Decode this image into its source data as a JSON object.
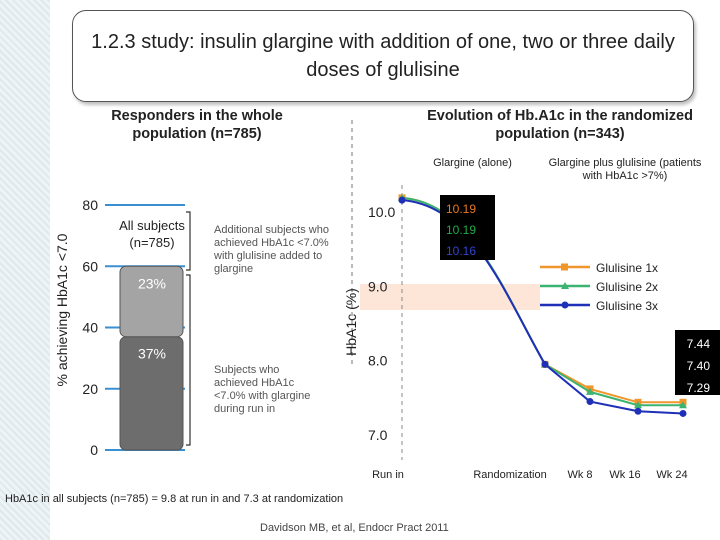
{
  "title": "1.2.3 study: insulin glargine with addition of one, two or three daily doses of glulisine",
  "left_heading": "Responders in the whole population (n=785)",
  "right_heading": "Evolution of Hb.A1c in the randomized population (n=343)",
  "left_chart": {
    "ylabel": "% achieving HbA1c <7.0",
    "yticks": [
      "0",
      "20",
      "40",
      "60",
      "80"
    ],
    "bar_label": "All subjects (n=785)",
    "segments": [
      {
        "label": "37%",
        "value": 37,
        "color": "#6d6d6d"
      },
      {
        "label": "23%",
        "value": 23,
        "color": "#a4a4a4"
      }
    ],
    "note_top": "Additional subjects who achieved HbA1c <7.0% with glulisine added to glargine",
    "note_bottom": "Subjects who achieved HbA1c <7.0% with glargine during run in"
  },
  "chart_data": {
    "type": "line",
    "ylabel": "HbA1c (%)",
    "ylim": [
      7.0,
      10.0
    ],
    "yticks": [
      "7.0",
      "8.0",
      "9.0",
      "10.0"
    ],
    "x_labels": [
      "Run in",
      "Randomization",
      "Wk 8",
      "Wk 16",
      "Wk 24"
    ],
    "phase_labels": {
      "left": "Glargine (alone)",
      "right": "Glargine plus glulisine (patients with HbA1c >7%)"
    },
    "run_in_values": [
      {
        "text": "10.19",
        "color": "#e87722"
      },
      {
        "text": "10.19",
        "color": "#22aa44"
      },
      {
        "text": "10.16",
        "color": "#3344cc"
      }
    ],
    "end_values": [
      "7.44",
      "7.40",
      "7.29"
    ],
    "series": [
      {
        "name": "Glulisine 1x",
        "color": "#f0962a",
        "marker": "square",
        "values": [
          10.19,
          7.95,
          7.62,
          7.44,
          7.44
        ]
      },
      {
        "name": "Glulisine 2x",
        "color": "#3cb371",
        "marker": "triangle",
        "values": [
          10.19,
          7.95,
          7.58,
          7.4,
          7.4
        ]
      },
      {
        "name": "Glulisine 3x",
        "color": "#1e2fb8",
        "marker": "circle",
        "values": [
          10.16,
          7.95,
          7.45,
          7.32,
          7.29
        ]
      }
    ]
  },
  "footer": "HbA1c in all subjects (n=785) = 9.8 at run in and 7.3 at randomization",
  "citation": "Davidson MB, et al, Endocr Pract 2011"
}
